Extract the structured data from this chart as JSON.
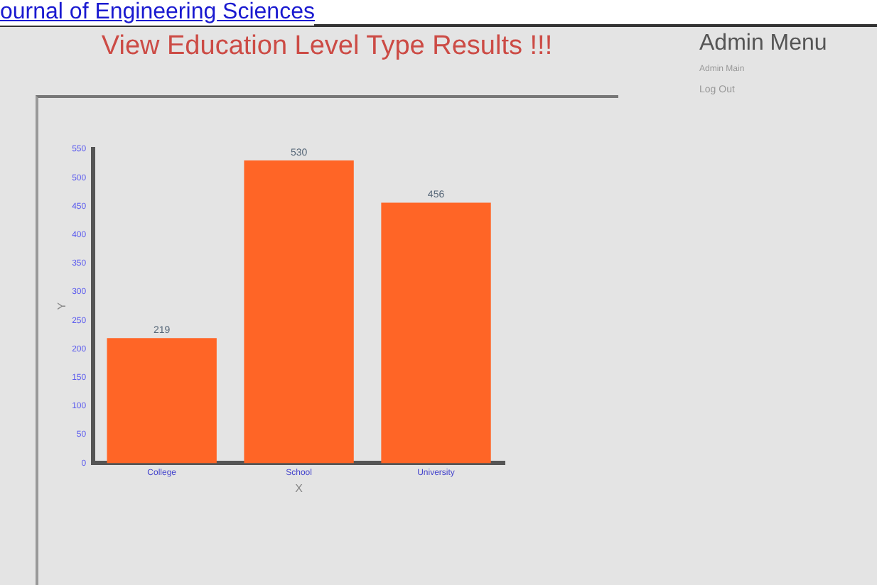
{
  "chart_data": {
    "type": "bar",
    "title": "View Education Level Type Results !!!",
    "xlabel": "X",
    "ylabel": "Y",
    "categories": [
      "College",
      "School",
      "University"
    ],
    "values": [
      219,
      530,
      456
    ],
    "color": "#ff6526",
    "ylim": [
      0,
      550
    ],
    "yticks": [
      0,
      50,
      100,
      150,
      200,
      250,
      300,
      350,
      400,
      450,
      500,
      550
    ],
    "grid": false,
    "legend": false,
    "data_labels": true,
    "annotations": [
      "ournal of Engineering Sciences",
      "Admin Menu",
      "Admin Main",
      "Log Out"
    ]
  }
}
